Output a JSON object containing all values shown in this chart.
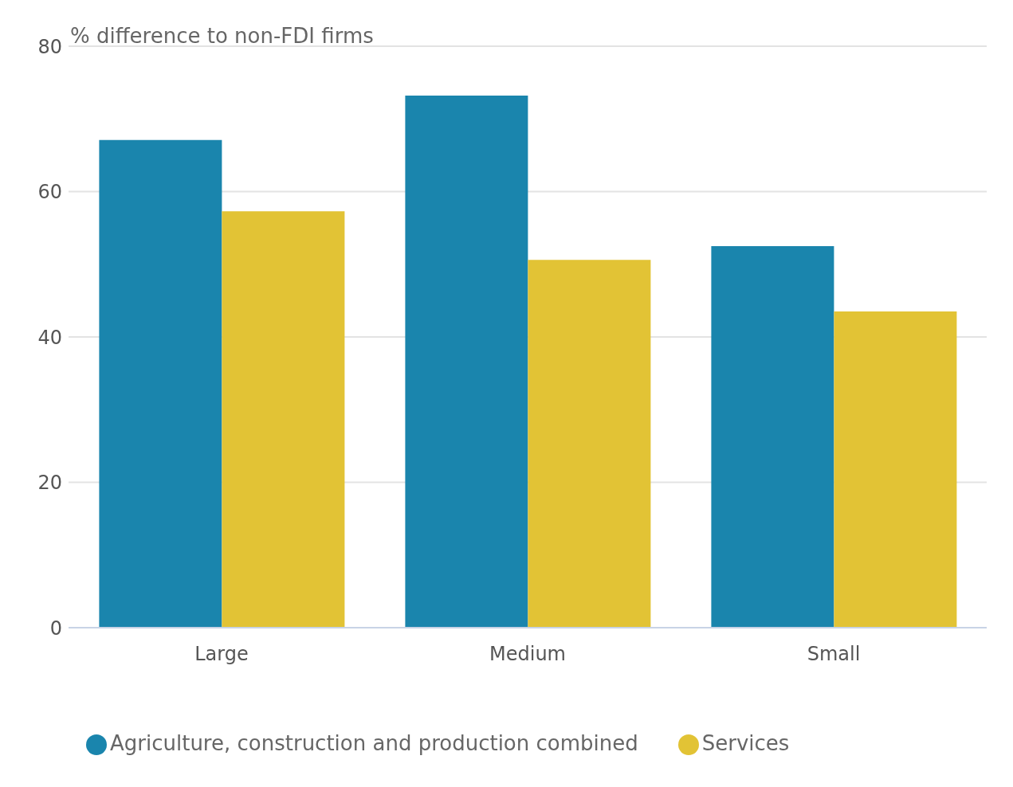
{
  "chart_data": {
    "type": "bar",
    "ylabel": "% difference to non-FDI firms",
    "categories": [
      "Large",
      "Medium",
      "Small"
    ],
    "series": [
      {
        "name": "Agriculture, construction and production combined",
        "color": "#1a85ad",
        "values": [
          67.1,
          73.2,
          52.5
        ]
      },
      {
        "name": "Services",
        "color": "#e2c335",
        "values": [
          57.3,
          50.6,
          43.5
        ]
      }
    ],
    "ylim": [
      0,
      80
    ],
    "yticks": [
      0,
      20,
      40,
      60,
      80
    ],
    "grid": "y",
    "legend": "bottom"
  }
}
